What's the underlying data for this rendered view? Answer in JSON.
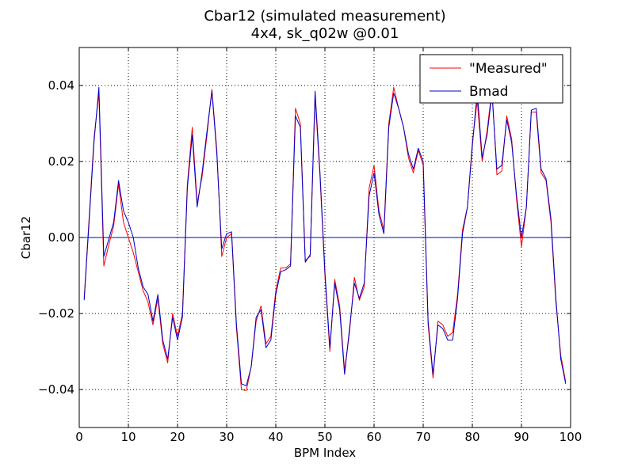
{
  "chart_data": {
    "type": "line",
    "title": "Cbar12 (simulated measurement)",
    "subtitle": "4x4, sk_q02w @0.01",
    "xlabel": "BPM Index",
    "ylabel": "Cbar12",
    "xlim": [
      0,
      100
    ],
    "ylim": [
      -0.05,
      0.05
    ],
    "x_ticks": [
      0,
      10,
      20,
      30,
      40,
      50,
      60,
      70,
      80,
      90,
      100
    ],
    "y_ticks": [
      -0.04,
      -0.02,
      0.0,
      0.02,
      0.04
    ],
    "y_tick_labels": [
      "−0.04",
      "−0.02",
      "0.00",
      "0.02",
      "0.04"
    ],
    "grid": true,
    "legend_position": "top-right",
    "zero_line": 0,
    "series": [
      {
        "name": "\"Measured\"",
        "color": "#ff0000",
        "x": [
          1,
          2,
          3,
          4,
          5,
          6,
          7,
          8,
          9,
          10,
          11,
          12,
          13,
          14,
          15,
          16,
          17,
          18,
          19,
          20,
          21,
          22,
          23,
          24,
          25,
          26,
          27,
          28,
          29,
          30,
          31,
          32,
          33,
          34,
          35,
          36,
          37,
          38,
          39,
          40,
          41,
          42,
          43,
          44,
          45,
          46,
          47,
          48,
          49,
          50,
          51,
          52,
          53,
          54,
          55,
          56,
          57,
          58,
          59,
          60,
          61,
          62,
          63,
          64,
          65,
          66,
          67,
          68,
          69,
          70,
          71,
          72,
          73,
          74,
          75,
          76,
          77,
          78,
          79,
          80,
          81,
          82,
          83,
          84,
          85,
          86,
          87,
          88,
          89,
          90,
          91,
          92,
          93,
          94,
          95,
          96,
          97,
          98,
          99
        ],
        "values": [
          -0.016,
          0.005,
          0.026,
          0.038,
          -0.0075,
          -0.002,
          0.003,
          0.014,
          0.004,
          0.0,
          -0.004,
          -0.009,
          -0.014,
          -0.017,
          -0.023,
          -0.016,
          -0.028,
          -0.033,
          -0.02,
          -0.026,
          -0.02,
          0.014,
          0.029,
          0.009,
          0.016,
          0.027,
          0.039,
          0.023,
          -0.005,
          0.0,
          0.001,
          -0.024,
          -0.04,
          -0.0403,
          -0.034,
          -0.022,
          -0.018,
          -0.028,
          -0.026,
          -0.014,
          -0.008,
          -0.008,
          -0.007,
          0.034,
          0.03,
          -0.006,
          -0.005,
          0.037,
          0.016,
          -0.01,
          -0.03,
          -0.011,
          -0.018,
          -0.035,
          -0.025,
          -0.0105,
          -0.0165,
          -0.013,
          0.013,
          0.019,
          0.007,
          0.002,
          0.03,
          0.0395,
          0.034,
          0.029,
          0.021,
          0.017,
          0.023,
          0.019,
          -0.023,
          -0.037,
          -0.022,
          -0.023,
          -0.026,
          -0.025,
          -0.015,
          0.002,
          0.008,
          0.025,
          0.036,
          0.02,
          0.028,
          0.039,
          0.0165,
          0.0175,
          0.032,
          0.026,
          0.01,
          -0.0025,
          0.008,
          0.033,
          0.033,
          0.017,
          0.015,
          0.004,
          -0.017,
          -0.031,
          -0.038
        ]
      },
      {
        "name": "Bmad",
        "color": "#0000cc",
        "x": [
          1,
          2,
          3,
          4,
          5,
          6,
          7,
          8,
          9,
          10,
          11,
          12,
          13,
          14,
          15,
          16,
          17,
          18,
          19,
          20,
          21,
          22,
          23,
          24,
          25,
          26,
          27,
          28,
          29,
          30,
          31,
          32,
          33,
          34,
          35,
          36,
          37,
          38,
          39,
          40,
          41,
          42,
          43,
          44,
          45,
          46,
          47,
          48,
          49,
          50,
          51,
          52,
          53,
          54,
          55,
          56,
          57,
          58,
          59,
          60,
          61,
          62,
          63,
          64,
          65,
          66,
          67,
          68,
          69,
          70,
          71,
          72,
          73,
          74,
          75,
          76,
          77,
          78,
          79,
          80,
          81,
          82,
          83,
          84,
          85,
          86,
          87,
          88,
          89,
          90,
          91,
          92,
          93,
          94,
          95,
          96,
          97,
          98,
          99
        ],
        "values": [
          -0.0165,
          0.004,
          0.025,
          0.0395,
          -0.005,
          -0.0005,
          0.004,
          0.015,
          0.007,
          0.004,
          0.0,
          -0.008,
          -0.013,
          -0.015,
          -0.022,
          -0.015,
          -0.027,
          -0.032,
          -0.021,
          -0.027,
          -0.021,
          0.013,
          0.027,
          0.008,
          0.017,
          0.028,
          0.0385,
          0.022,
          -0.003,
          0.001,
          0.0015,
          -0.023,
          -0.0385,
          -0.039,
          -0.034,
          -0.021,
          -0.019,
          -0.029,
          -0.027,
          -0.015,
          -0.009,
          -0.0085,
          -0.0075,
          0.032,
          0.029,
          -0.0065,
          -0.0045,
          0.0385,
          0.017,
          -0.009,
          -0.029,
          -0.012,
          -0.019,
          -0.036,
          -0.024,
          -0.012,
          -0.016,
          -0.012,
          0.011,
          0.017,
          0.006,
          0.001,
          0.029,
          0.038,
          0.034,
          0.029,
          0.022,
          0.018,
          0.0235,
          0.02,
          -0.022,
          -0.036,
          -0.023,
          -0.024,
          -0.027,
          -0.027,
          -0.016,
          0.001,
          0.008,
          0.024,
          0.0385,
          0.021,
          0.027,
          0.038,
          0.018,
          0.019,
          0.031,
          0.025,
          0.011,
          0.0,
          0.008,
          0.0335,
          0.034,
          0.018,
          0.0155,
          0.005,
          -0.016,
          -0.032,
          -0.0385
        ]
      }
    ]
  }
}
